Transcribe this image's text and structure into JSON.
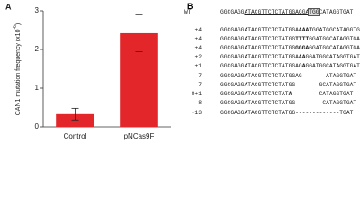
{
  "chart_data": {
    "type": "bar",
    "panel_label": "A",
    "ylabel": [
      "CAN1 mutation frequency (x10",
      "-6",
      ")"
    ],
    "categories": [
      "Control",
      "pNCas9F"
    ],
    "values": [
      0.33,
      2.42
    ],
    "errors": [
      0.15,
      0.48
    ],
    "color": "#e3262a",
    "ylim": [
      0,
      3
    ],
    "yticks": [
      0,
      1,
      2,
      3
    ]
  },
  "panel_b": {
    "panel_label": "B",
    "rows": [
      {
        "label": "WT",
        "segments": [
          {
            "text": "GGCGAGG"
          },
          {
            "text": "ATACGTTCTCTATGGAGGA",
            "underline": true
          },
          {
            "text": "TGG",
            "box": true
          },
          {
            "text": "CATAGGTGAT"
          }
        ]
      },
      {
        "label": "+4",
        "segments": [
          {
            "text": "GGCGAGGATACGTTCTCTATGGA"
          },
          {
            "text": "AAAT",
            "bold": true
          },
          {
            "text": "GGATGGCATAGGTGAT"
          }
        ]
      },
      {
        "label": "+4",
        "segments": [
          {
            "text": "GGCGAGGATACGTTCTCTATGG"
          },
          {
            "text": "TTTT",
            "bold": true
          },
          {
            "text": "GGATGGCATAGGTGAT"
          }
        ]
      },
      {
        "label": "+4",
        "segments": [
          {
            "text": "GGCGAGGATACGTTCTCTATGG"
          },
          {
            "text": "GGGA",
            "bold": true
          },
          {
            "text": "GGATGGCATAGGTGAT"
          }
        ]
      },
      {
        "label": "+2",
        "segments": [
          {
            "text": "GGCGAGGATACGTTCTCTATGGA"
          },
          {
            "text": "AA",
            "bold": true
          },
          {
            "text": "GGATGGCATAGGTGAT"
          }
        ]
      },
      {
        "label": "+1",
        "segments": [
          {
            "text": "GGCGAGGATACGTTCTCTATGGAG"
          },
          {
            "text": "A",
            "bold": true
          },
          {
            "text": "GGATGGCATAGGTGAT"
          }
        ]
      },
      {
        "label": "-7",
        "segments": [
          {
            "text": "GGCGAGGATACGTTCTCTATGGAG-------ATAGGTGAT"
          }
        ]
      },
      {
        "label": "-7",
        "segments": [
          {
            "text": "GGCGAGGATACGTTCTCTATGG-------GCATAGGTGAT"
          }
        ]
      },
      {
        "label": "-8+1",
        "segments": [
          {
            "text": "GGCGAGGATACGTTCTCTAT"
          },
          {
            "text": "A",
            "bold": true
          },
          {
            "text": "--------CATAGGTGAT"
          }
        ]
      },
      {
        "label": "-8",
        "segments": [
          {
            "text": "GGCGAGGATACGTTCTCTATGG--------CATAGGTGAT"
          }
        ]
      },
      {
        "label": "-13",
        "segments": [
          {
            "text": "GGCGAGGATACGTTCTCTATGG-------------TGAT"
          }
        ]
      }
    ]
  }
}
